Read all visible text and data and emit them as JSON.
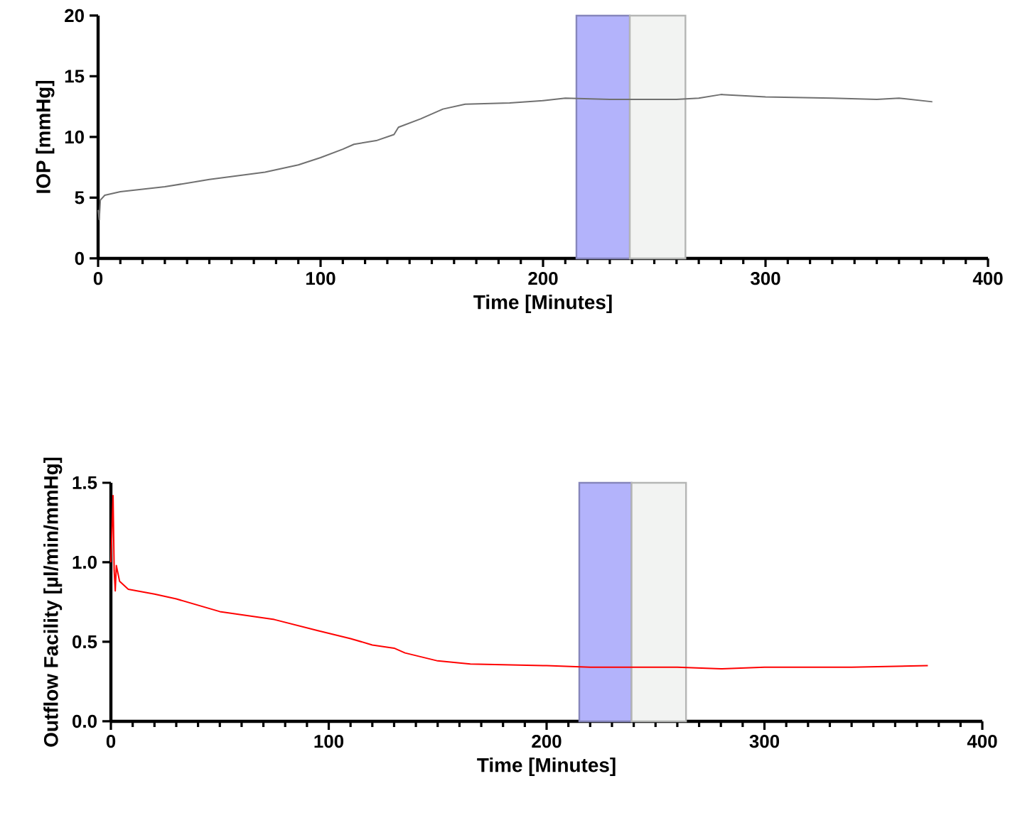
{
  "chart_data": [
    {
      "type": "line",
      "xlabel": "Time [Minutes]",
      "ylabel": "IOP [mmHg]",
      "xlim": [
        0,
        400
      ],
      "ylim": [
        0,
        20
      ],
      "xticks": [
        0,
        100,
        200,
        300,
        400
      ],
      "yticks": [
        0,
        5,
        10,
        15,
        20
      ],
      "grid": false,
      "x": [
        0,
        0.5,
        1,
        3,
        10,
        30,
        50,
        75,
        90,
        100,
        110,
        115,
        125,
        133,
        135,
        145,
        155,
        165,
        185,
        200,
        210,
        230,
        260,
        270,
        280,
        300,
        330,
        350,
        360,
        375
      ],
      "series": [
        {
          "color": "#707070",
          "values": [
            4.0,
            3.2,
            4.8,
            5.2,
            5.5,
            5.9,
            6.5,
            7.1,
            7.7,
            8.3,
            9.0,
            9.4,
            9.7,
            10.2,
            10.8,
            11.5,
            12.3,
            12.7,
            12.8,
            13.0,
            13.2,
            13.1,
            13.1,
            13.2,
            13.5,
            13.3,
            13.2,
            13.1,
            13.2,
            12.9
          ]
        }
      ],
      "bands": [
        {
          "axis": "x",
          "from": 215,
          "to": 239,
          "color": "#b3b3fb"
        },
        {
          "axis": "x",
          "from": 239,
          "to": 264,
          "color": "#f2f3f2"
        }
      ]
    },
    {
      "type": "line",
      "xlabel": "Time [Minutes]",
      "ylabel": "Outflow Facility [µl/min/mmHg]",
      "xlim": [
        0,
        400
      ],
      "ylim": [
        0,
        1.5
      ],
      "xticks": [
        0,
        100,
        200,
        300,
        400
      ],
      "yticks": [
        {
          "value": 0,
          "label": "0.0"
        },
        {
          "value": 0.5,
          "label": "0.5"
        },
        {
          "value": 1,
          "label": "1.0"
        },
        {
          "value": 1.5,
          "label": "1.5"
        }
      ],
      "grid": false,
      "x": [
        0,
        1,
        1.5,
        2,
        2.5,
        4,
        8,
        20,
        30,
        50,
        75,
        95,
        110,
        120,
        130,
        135,
        150,
        165,
        200,
        220,
        260,
        280,
        300,
        340,
        375
      ],
      "series": [
        {
          "color": "#ff0000",
          "values": [
            1.0,
            1.42,
            0.95,
            0.82,
            0.98,
            0.88,
            0.83,
            0.8,
            0.77,
            0.69,
            0.64,
            0.57,
            0.52,
            0.48,
            0.46,
            0.43,
            0.38,
            0.36,
            0.35,
            0.34,
            0.34,
            0.33,
            0.34,
            0.34,
            0.35
          ]
        }
      ],
      "bands": [
        {
          "axis": "x",
          "from": 215,
          "to": 239,
          "color": "#b3b3fb"
        },
        {
          "axis": "x",
          "from": 239,
          "to": 264,
          "color": "#f2f3f2"
        }
      ]
    }
  ]
}
